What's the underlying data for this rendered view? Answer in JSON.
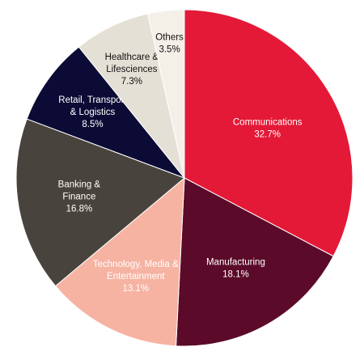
{
  "chart_data": {
    "type": "pie",
    "start_angle_deg": 0,
    "direction": "clockwise",
    "slices": [
      {
        "name": "Communications",
        "label_lines": [
          "Communications"
        ],
        "value": 32.7,
        "value_label": "32.7%",
        "color": "#e31937",
        "text_color": "#ffffff"
      },
      {
        "name": "Manufacturing",
        "label_lines": [
          "Manufacturing"
        ],
        "value": 18.1,
        "value_label": "18.1%",
        "color": "#5c0a2a",
        "text_color": "#ffffff"
      },
      {
        "name": "Technology, Media & Entertainment",
        "label_lines": [
          "Technology, Media &",
          "Entertainment"
        ],
        "value": 13.1,
        "value_label": "13.1%",
        "color": "#f6b3a2",
        "text_color": "#ffffff"
      },
      {
        "name": "Banking & Finance",
        "label_lines": [
          "Banking &",
          "Finance"
        ],
        "value": 16.8,
        "value_label": "16.8%",
        "color": "#48433c",
        "text_color": "#ffffff"
      },
      {
        "name": "Retail, Transport & Logistics",
        "label_lines": [
          "Retail, Transport",
          "& Logistics"
        ],
        "value": 8.5,
        "value_label": "8.5%",
        "color": "#0c0b35",
        "text_color": "#ffffff"
      },
      {
        "name": "Healthcare & Lifesciences",
        "label_lines": [
          "Healthcare &",
          "Lifesciences"
        ],
        "value": 7.3,
        "value_label": "7.3%",
        "color": "#e5e0d5",
        "text_color": "#111111"
      },
      {
        "name": "Others",
        "label_lines": [
          "Others"
        ],
        "value": 3.5,
        "value_label": "3.5%",
        "color": "#f4f0e8",
        "text_color": "#111111"
      }
    ]
  }
}
